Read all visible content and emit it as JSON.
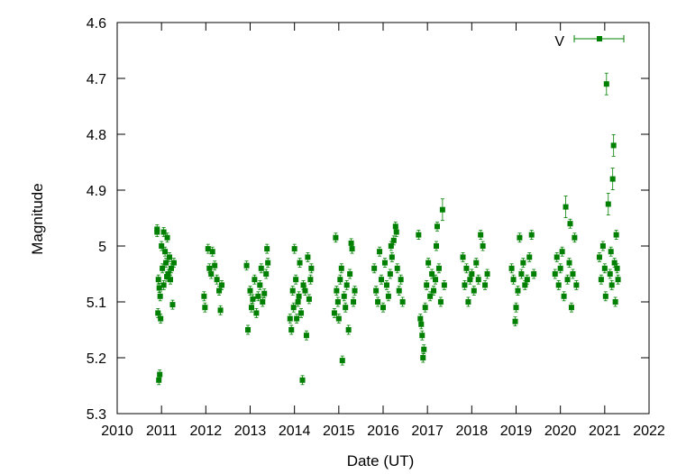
{
  "chart_data": {
    "type": "scatter",
    "xlabel": "Date (UT)",
    "ylabel": "Magnitude",
    "xlim": [
      2010,
      2022
    ],
    "ylim": [
      5.3,
      4.6
    ],
    "y_inverted": true,
    "x_ticks": [
      "2010",
      "2011",
      "2012",
      "2013",
      "2014",
      "2015",
      "2016",
      "2017",
      "2018",
      "2019",
      "2020",
      "2021",
      "2022"
    ],
    "y_ticks": [
      "4.6",
      "4.7",
      "4.8",
      "4.9",
      "5",
      "5.1",
      "5.2",
      "5.3"
    ],
    "legend_position": "top-right",
    "grid": false,
    "marker_color": "#008000",
    "series": [
      {
        "name": "V",
        "points": [
          [
            2010.9,
            4.97
          ],
          [
            2010.9,
            4.975
          ],
          [
            2010.92,
            5.12
          ],
          [
            2010.94,
            5.24
          ],
          [
            2010.96,
            5.23
          ],
          [
            2010.98,
            5.13
          ],
          [
            2010.93,
            5.06
          ],
          [
            2010.95,
            5.075
          ],
          [
            2010.97,
            5.09
          ],
          [
            2011.0,
            5.0
          ],
          [
            2011.02,
            5.04
          ],
          [
            2011.05,
            4.975
          ],
          [
            2011.08,
            5.01
          ],
          [
            2011.1,
            5.03
          ],
          [
            2011.13,
            4.985
          ],
          [
            2011.15,
            5.05
          ],
          [
            2011.18,
            5.02
          ],
          [
            2011.2,
            5.06
          ],
          [
            2011.22,
            5.04
          ],
          [
            2011.25,
            5.105
          ],
          [
            2011.28,
            5.03
          ],
          [
            2011.05,
            5.07
          ],
          [
            2011.12,
            5.055
          ],
          [
            2011.96,
            5.09
          ],
          [
            2011.98,
            5.11
          ],
          [
            2012.05,
            5.005
          ],
          [
            2012.08,
            5.04
          ],
          [
            2012.12,
            5.05
          ],
          [
            2012.15,
            5.01
          ],
          [
            2012.2,
            5.035
          ],
          [
            2012.25,
            5.06
          ],
          [
            2012.3,
            5.08
          ],
          [
            2012.33,
            5.115
          ],
          [
            2012.36,
            5.07
          ],
          [
            2012.92,
            5.035
          ],
          [
            2012.95,
            5.15
          ],
          [
            2013.0,
            5.08
          ],
          [
            2013.03,
            5.11
          ],
          [
            2013.06,
            5.095
          ],
          [
            2013.1,
            5.06
          ],
          [
            2013.14,
            5.12
          ],
          [
            2013.18,
            5.09
          ],
          [
            2013.22,
            5.07
          ],
          [
            2013.25,
            5.04
          ],
          [
            2013.28,
            5.1
          ],
          [
            2013.32,
            5.085
          ],
          [
            2013.36,
            5.05
          ],
          [
            2013.4,
            5.03
          ],
          [
            2013.38,
            5.005
          ],
          [
            2013.9,
            5.13
          ],
          [
            2013.93,
            5.15
          ],
          [
            2013.96,
            5.08
          ],
          [
            2013.98,
            5.11
          ],
          [
            2014.0,
            5.005
          ],
          [
            2014.03,
            5.06
          ],
          [
            2014.05,
            5.13
          ],
          [
            2014.08,
            5.1
          ],
          [
            2014.1,
            5.09
          ],
          [
            2014.12,
            5.03
          ],
          [
            2014.15,
            5.12
          ],
          [
            2014.18,
            5.24
          ],
          [
            2014.2,
            5.07
          ],
          [
            2014.24,
            5.08
          ],
          [
            2014.27,
            5.16
          ],
          [
            2014.3,
            5.02
          ],
          [
            2014.33,
            5.095
          ],
          [
            2014.36,
            5.06
          ],
          [
            2014.38,
            5.04
          ],
          [
            2014.9,
            5.12
          ],
          [
            2014.93,
            4.985
          ],
          [
            2014.95,
            5.08
          ],
          [
            2014.98,
            5.1
          ],
          [
            2015.0,
            5.13
          ],
          [
            2015.03,
            5.06
          ],
          [
            2015.06,
            5.04
          ],
          [
            2015.08,
            5.205
          ],
          [
            2015.12,
            5.09
          ],
          [
            2015.15,
            5.11
          ],
          [
            2015.18,
            5.07
          ],
          [
            2015.22,
            5.15
          ],
          [
            2015.25,
            5.05
          ],
          [
            2015.28,
            4.995
          ],
          [
            2015.3,
            5.005
          ],
          [
            2015.33,
            5.1
          ],
          [
            2015.36,
            5.08
          ],
          [
            2015.8,
            5.04
          ],
          [
            2015.84,
            5.08
          ],
          [
            2015.88,
            5.1
          ],
          [
            2015.92,
            5.01
          ],
          [
            2015.96,
            5.06
          ],
          [
            2016.0,
            5.11
          ],
          [
            2016.04,
            5.03
          ],
          [
            2016.08,
            5.07
          ],
          [
            2016.12,
            5.09
          ],
          [
            2016.16,
            5.05
          ],
          [
            2016.2,
            5.02
          ],
          [
            2016.24,
            4.99
          ],
          [
            2016.28,
            4.965
          ],
          [
            2016.32,
            5.04
          ],
          [
            2016.36,
            5.08
          ],
          [
            2016.4,
            5.06
          ],
          [
            2016.44,
            5.1
          ],
          [
            2016.18,
            5.0
          ],
          [
            2016.3,
            4.975
          ],
          [
            2016.8,
            4.98
          ],
          [
            2016.84,
            5.13
          ],
          [
            2016.88,
            5.16
          ],
          [
            2016.9,
            5.2
          ],
          [
            2016.92,
            5.185
          ],
          [
            2016.95,
            5.11
          ],
          [
            2016.98,
            5.07
          ],
          [
            2017.02,
            5.03
          ],
          [
            2017.06,
            5.09
          ],
          [
            2017.1,
            5.05
          ],
          [
            2017.14,
            5.08
          ],
          [
            2017.18,
            5.06
          ],
          [
            2017.2,
            5.0
          ],
          [
            2017.22,
            4.965
          ],
          [
            2017.26,
            5.04
          ],
          [
            2017.3,
            5.1
          ],
          [
            2017.34,
            4.935
          ],
          [
            2017.38,
            5.07
          ],
          [
            2016.86,
            5.14
          ],
          [
            2017.8,
            5.02
          ],
          [
            2017.84,
            5.07
          ],
          [
            2017.88,
            5.04
          ],
          [
            2017.92,
            5.1
          ],
          [
            2017.96,
            5.06
          ],
          [
            2018.0,
            5.05
          ],
          [
            2018.05,
            5.08
          ],
          [
            2018.1,
            5.03
          ],
          [
            2018.15,
            5.06
          ],
          [
            2018.2,
            4.98
          ],
          [
            2018.25,
            5.0
          ],
          [
            2018.3,
            5.07
          ],
          [
            2018.35,
            5.05
          ],
          [
            2018.9,
            5.04
          ],
          [
            2018.94,
            5.06
          ],
          [
            2018.98,
            5.135
          ],
          [
            2019.0,
            5.11
          ],
          [
            2019.04,
            5.08
          ],
          [
            2019.08,
            4.985
          ],
          [
            2019.12,
            5.05
          ],
          [
            2019.16,
            5.03
          ],
          [
            2019.2,
            5.07
          ],
          [
            2019.25,
            5.06
          ],
          [
            2019.3,
            5.02
          ],
          [
            2019.35,
            4.98
          ],
          [
            2019.4,
            5.05
          ],
          [
            2019.88,
            5.05
          ],
          [
            2019.92,
            5.02
          ],
          [
            2019.96,
            5.07
          ],
          [
            2020.0,
            5.04
          ],
          [
            2020.04,
            5.01
          ],
          [
            2020.08,
            5.09
          ],
          [
            2020.12,
            4.93
          ],
          [
            2020.16,
            5.06
          ],
          [
            2020.2,
            5.03
          ],
          [
            2020.22,
            4.96
          ],
          [
            2020.25,
            5.11
          ],
          [
            2020.28,
            5.05
          ],
          [
            2020.32,
            4.985
          ],
          [
            2020.36,
            5.07
          ],
          [
            2020.88,
            5.02
          ],
          [
            2020.92,
            5.06
          ],
          [
            2020.96,
            5.0
          ],
          [
            2021.0,
            5.04
          ],
          [
            2021.02,
            5.09
          ],
          [
            2021.04,
            4.71
          ],
          [
            2021.08,
            4.925
          ],
          [
            2021.12,
            5.05
          ],
          [
            2021.16,
            5.07
          ],
          [
            2021.18,
            4.88
          ],
          [
            2021.2,
            4.82
          ],
          [
            2021.22,
            5.03
          ],
          [
            2021.24,
            5.1
          ],
          [
            2021.26,
            4.98
          ],
          [
            2021.3,
            5.06
          ],
          [
            2021.14,
            5.01
          ],
          [
            2021.28,
            5.04
          ]
        ]
      }
    ]
  }
}
